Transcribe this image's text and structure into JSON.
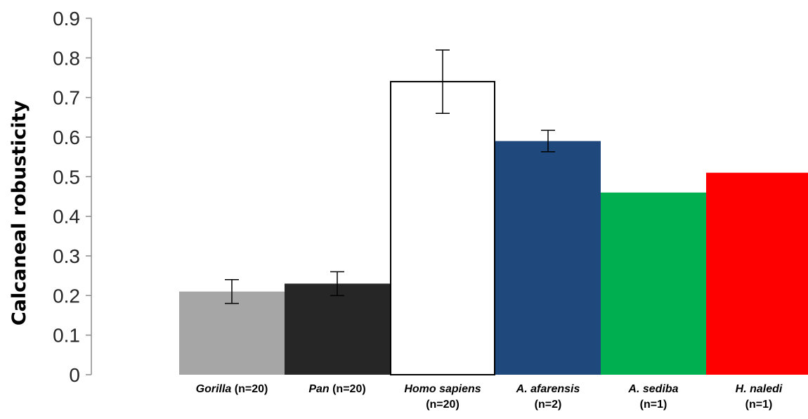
{
  "chart_data": {
    "type": "bar",
    "title": "",
    "xlabel": "",
    "ylabel": "Calcaneal robusticity",
    "ylim": [
      0,
      0.9
    ],
    "yticks": [
      "0",
      "0.1",
      "0.2",
      "0.3",
      "0.4",
      "0.5",
      "0.6",
      "0.7",
      "0.8",
      "0.9"
    ],
    "grid": false,
    "legend": "none",
    "categories": [
      {
        "name": "Gorilla",
        "n": "(n=20)",
        "value": 0.21,
        "err": 0.03,
        "color": "#a6a6a6",
        "stroke": "#a6a6a6"
      },
      {
        "name": "Pan",
        "n": "(n=20)",
        "value": 0.23,
        "err": 0.03,
        "color": "#262626",
        "stroke": "#262626"
      },
      {
        "name": "Homo sapiens",
        "n": "(n=20)",
        "value": 0.74,
        "err": 0.08,
        "color": "#ffffff",
        "stroke": "#000000"
      },
      {
        "name": "A. afarensis",
        "n": "(n=2)",
        "value": 0.59,
        "err": 0.027,
        "color": "#1f497d",
        "stroke": "#1f497d"
      },
      {
        "name": "A. sediba",
        "n": "(n=1)",
        "value": 0.46,
        "err": null,
        "color": "#00b050",
        "stroke": "#00b050"
      },
      {
        "name": "H. naledi",
        "n": "(n=1)",
        "value": 0.51,
        "err": null,
        "color": "#ff0000",
        "stroke": "#ff0000"
      }
    ]
  }
}
